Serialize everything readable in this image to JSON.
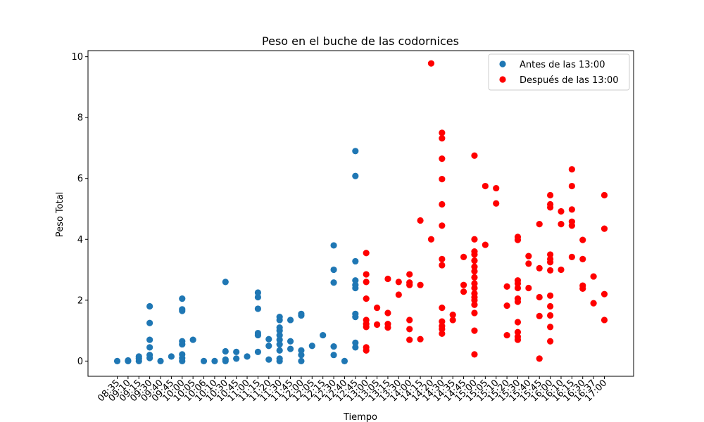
{
  "chart_data": {
    "type": "scatter",
    "title": "Peso en el buche de las codornices",
    "xlabel": "Tiempo",
    "ylabel": "Peso Total",
    "ylim": [
      -0.5,
      10.2
    ],
    "yticks": [
      0,
      2,
      4,
      6,
      8,
      10
    ],
    "grid": false,
    "legend_position": "top-right",
    "categories": [
      "08:35",
      "09:10",
      "09:15",
      "09:30",
      "09:40",
      "09:45",
      "10:00",
      "10:05",
      "10:06",
      "10:10",
      "10:30",
      "10:45",
      "11:00",
      "11:15",
      "11:20",
      "11:30",
      "11:45",
      "12:00",
      "12:05",
      "12:15",
      "12:30",
      "12:40",
      "12:45",
      "13:00",
      "13:05",
      "13:15",
      "13:30",
      "14:00",
      "14:15",
      "14:20",
      "14:30",
      "14:35",
      "14:45",
      "15:00",
      "15:05",
      "15:10",
      "15:20",
      "15:30",
      "15:40",
      "15:45",
      "16:00",
      "16:10",
      "16:15",
      "16:30",
      "16:37",
      "17:00"
    ],
    "series": [
      {
        "name": "Antes de las 13:00",
        "color": "#1f77b4",
        "points": [
          {
            "x": "08:35",
            "y": 0.0
          },
          {
            "x": "09:10",
            "y": 0.0
          },
          {
            "x": "09:10",
            "y": 0.02
          },
          {
            "x": "09:15",
            "y": 0.0
          },
          {
            "x": "09:15",
            "y": 0.08
          },
          {
            "x": "09:15",
            "y": 0.15
          },
          {
            "x": "09:30",
            "y": 0.1
          },
          {
            "x": "09:30",
            "y": 0.2
          },
          {
            "x": "09:30",
            "y": 0.45
          },
          {
            "x": "09:30",
            "y": 0.7
          },
          {
            "x": "09:30",
            "y": 1.25
          },
          {
            "x": "09:30",
            "y": 1.8
          },
          {
            "x": "09:40",
            "y": 0.0
          },
          {
            "x": "09:45",
            "y": 0.15
          },
          {
            "x": "10:00",
            "y": 0.0
          },
          {
            "x": "10:00",
            "y": 0.1
          },
          {
            "x": "10:00",
            "y": 0.22
          },
          {
            "x": "10:00",
            "y": 0.55
          },
          {
            "x": "10:00",
            "y": 0.65
          },
          {
            "x": "10:00",
            "y": 1.65
          },
          {
            "x": "10:00",
            "y": 1.7
          },
          {
            "x": "10:00",
            "y": 2.05
          },
          {
            "x": "10:05",
            "y": 0.7
          },
          {
            "x": "10:06",
            "y": 0.0
          },
          {
            "x": "10:10",
            "y": 0.0
          },
          {
            "x": "10:30",
            "y": 0.0
          },
          {
            "x": "10:30",
            "y": 0.05
          },
          {
            "x": "10:30",
            "y": 0.32
          },
          {
            "x": "10:30",
            "y": 2.6
          },
          {
            "x": "10:45",
            "y": 0.08
          },
          {
            "x": "10:45",
            "y": 0.3
          },
          {
            "x": "11:00",
            "y": 0.15
          },
          {
            "x": "11:15",
            "y": 0.3
          },
          {
            "x": "11:15",
            "y": 0.85
          },
          {
            "x": "11:15",
            "y": 0.92
          },
          {
            "x": "11:15",
            "y": 1.72
          },
          {
            "x": "11:15",
            "y": 2.1
          },
          {
            "x": "11:15",
            "y": 2.25
          },
          {
            "x": "11:20",
            "y": 0.05
          },
          {
            "x": "11:20",
            "y": 0.5
          },
          {
            "x": "11:20",
            "y": 0.72
          },
          {
            "x": "11:30",
            "y": 0.0
          },
          {
            "x": "11:30",
            "y": 0.08
          },
          {
            "x": "11:30",
            "y": 0.35
          },
          {
            "x": "11:30",
            "y": 0.55
          },
          {
            "x": "11:30",
            "y": 0.7
          },
          {
            "x": "11:30",
            "y": 0.85
          },
          {
            "x": "11:30",
            "y": 1.0
          },
          {
            "x": "11:30",
            "y": 1.1
          },
          {
            "x": "11:30",
            "y": 1.35
          },
          {
            "x": "11:30",
            "y": 1.45
          },
          {
            "x": "11:45",
            "y": 0.4
          },
          {
            "x": "11:45",
            "y": 0.65
          },
          {
            "x": "11:45",
            "y": 1.35
          },
          {
            "x": "12:00",
            "y": 0.0
          },
          {
            "x": "12:00",
            "y": 0.2
          },
          {
            "x": "12:00",
            "y": 0.35
          },
          {
            "x": "12:00",
            "y": 1.5
          },
          {
            "x": "12:00",
            "y": 1.55
          },
          {
            "x": "12:05",
            "y": 0.5
          },
          {
            "x": "12:15",
            "y": 0.85
          },
          {
            "x": "12:30",
            "y": 0.2
          },
          {
            "x": "12:30",
            "y": 0.48
          },
          {
            "x": "12:30",
            "y": 2.58
          },
          {
            "x": "12:30",
            "y": 3.0
          },
          {
            "x": "12:30",
            "y": 3.8
          },
          {
            "x": "12:40",
            "y": 0.0
          },
          {
            "x": "12:45",
            "y": 0.45
          },
          {
            "x": "12:45",
            "y": 0.6
          },
          {
            "x": "12:45",
            "y": 1.45
          },
          {
            "x": "12:45",
            "y": 1.55
          },
          {
            "x": "12:45",
            "y": 2.4
          },
          {
            "x": "12:45",
            "y": 2.5
          },
          {
            "x": "12:45",
            "y": 2.65
          },
          {
            "x": "12:45",
            "y": 3.28
          },
          {
            "x": "12:45",
            "y": 6.08
          },
          {
            "x": "12:45",
            "y": 6.9
          }
        ]
      },
      {
        "name": "Después de las 13:00",
        "color": "#ff0000",
        "points": [
          {
            "x": "13:00",
            "y": 0.35
          },
          {
            "x": "13:00",
            "y": 0.45
          },
          {
            "x": "13:00",
            "y": 1.12
          },
          {
            "x": "13:00",
            "y": 1.22
          },
          {
            "x": "13:00",
            "y": 1.35
          },
          {
            "x": "13:00",
            "y": 2.05
          },
          {
            "x": "13:00",
            "y": 2.6
          },
          {
            "x": "13:00",
            "y": 2.85
          },
          {
            "x": "13:00",
            "y": 3.55
          },
          {
            "x": "13:05",
            "y": 1.2
          },
          {
            "x": "13:05",
            "y": 1.75
          },
          {
            "x": "13:15",
            "y": 1.1
          },
          {
            "x": "13:15",
            "y": 1.22
          },
          {
            "x": "13:15",
            "y": 1.58
          },
          {
            "x": "13:15",
            "y": 2.7
          },
          {
            "x": "13:30",
            "y": 2.18
          },
          {
            "x": "13:30",
            "y": 2.6
          },
          {
            "x": "14:00",
            "y": 0.7
          },
          {
            "x": "14:00",
            "y": 1.05
          },
          {
            "x": "14:00",
            "y": 1.35
          },
          {
            "x": "14:00",
            "y": 2.5
          },
          {
            "x": "14:00",
            "y": 2.58
          },
          {
            "x": "14:00",
            "y": 2.85
          },
          {
            "x": "14:15",
            "y": 0.72
          },
          {
            "x": "14:15",
            "y": 2.5
          },
          {
            "x": "14:15",
            "y": 4.62
          },
          {
            "x": "14:20",
            "y": 4.0
          },
          {
            "x": "14:20",
            "y": 9.78
          },
          {
            "x": "14:30",
            "y": 0.9
          },
          {
            "x": "14:30",
            "y": 1.05
          },
          {
            "x": "14:30",
            "y": 1.15
          },
          {
            "x": "14:30",
            "y": 1.3
          },
          {
            "x": "14:30",
            "y": 1.75
          },
          {
            "x": "14:30",
            "y": 3.15
          },
          {
            "x": "14:30",
            "y": 3.35
          },
          {
            "x": "14:30",
            "y": 4.45
          },
          {
            "x": "14:30",
            "y": 5.15
          },
          {
            "x": "14:30",
            "y": 5.98
          },
          {
            "x": "14:30",
            "y": 6.65
          },
          {
            "x": "14:30",
            "y": 7.32
          },
          {
            "x": "14:30",
            "y": 7.5
          },
          {
            "x": "14:35",
            "y": 1.35
          },
          {
            "x": "14:35",
            "y": 1.52
          },
          {
            "x": "14:45",
            "y": 2.28
          },
          {
            "x": "14:45",
            "y": 2.5
          },
          {
            "x": "14:45",
            "y": 3.42
          },
          {
            "x": "15:00",
            "y": 0.22
          },
          {
            "x": "15:00",
            "y": 1.0
          },
          {
            "x": "15:00",
            "y": 1.58
          },
          {
            "x": "15:00",
            "y": 1.85
          },
          {
            "x": "15:00",
            "y": 2.0
          },
          {
            "x": "15:00",
            "y": 2.1
          },
          {
            "x": "15:00",
            "y": 2.22
          },
          {
            "x": "15:00",
            "y": 2.4
          },
          {
            "x": "15:00",
            "y": 2.55
          },
          {
            "x": "15:00",
            "y": 2.75
          },
          {
            "x": "15:00",
            "y": 2.95
          },
          {
            "x": "15:00",
            "y": 3.1
          },
          {
            "x": "15:00",
            "y": 3.3
          },
          {
            "x": "15:00",
            "y": 3.5
          },
          {
            "x": "15:00",
            "y": 3.6
          },
          {
            "x": "15:00",
            "y": 4.0
          },
          {
            "x": "15:00",
            "y": 6.75
          },
          {
            "x": "15:05",
            "y": 3.82
          },
          {
            "x": "15:05",
            "y": 5.75
          },
          {
            "x": "15:10",
            "y": 5.18
          },
          {
            "x": "15:10",
            "y": 5.68
          },
          {
            "x": "15:20",
            "y": 0.85
          },
          {
            "x": "15:20",
            "y": 1.82
          },
          {
            "x": "15:20",
            "y": 2.45
          },
          {
            "x": "15:30",
            "y": 0.7
          },
          {
            "x": "15:30",
            "y": 0.8
          },
          {
            "x": "15:30",
            "y": 0.95
          },
          {
            "x": "15:30",
            "y": 1.28
          },
          {
            "x": "15:30",
            "y": 1.95
          },
          {
            "x": "15:30",
            "y": 2.05
          },
          {
            "x": "15:30",
            "y": 2.4
          },
          {
            "x": "15:30",
            "y": 2.55
          },
          {
            "x": "15:30",
            "y": 2.65
          },
          {
            "x": "15:30",
            "y": 3.98
          },
          {
            "x": "15:30",
            "y": 4.08
          },
          {
            "x": "15:40",
            "y": 2.4
          },
          {
            "x": "15:40",
            "y": 3.2
          },
          {
            "x": "15:40",
            "y": 3.45
          },
          {
            "x": "15:45",
            "y": 0.08
          },
          {
            "x": "15:45",
            "y": 1.48
          },
          {
            "x": "15:45",
            "y": 2.1
          },
          {
            "x": "15:45",
            "y": 3.05
          },
          {
            "x": "15:45",
            "y": 4.5
          },
          {
            "x": "16:00",
            "y": 0.65
          },
          {
            "x": "16:00",
            "y": 1.12
          },
          {
            "x": "16:00",
            "y": 1.5
          },
          {
            "x": "16:00",
            "y": 1.8
          },
          {
            "x": "16:00",
            "y": 2.15
          },
          {
            "x": "16:00",
            "y": 2.98
          },
          {
            "x": "16:00",
            "y": 3.25
          },
          {
            "x": "16:00",
            "y": 3.35
          },
          {
            "x": "16:00",
            "y": 3.5
          },
          {
            "x": "16:00",
            "y": 5.05
          },
          {
            "x": "16:00",
            "y": 5.15
          },
          {
            "x": "16:00",
            "y": 5.45
          },
          {
            "x": "16:10",
            "y": 3.0
          },
          {
            "x": "16:10",
            "y": 4.5
          },
          {
            "x": "16:10",
            "y": 4.92
          },
          {
            "x": "16:15",
            "y": 3.42
          },
          {
            "x": "16:15",
            "y": 4.45
          },
          {
            "x": "16:15",
            "y": 4.58
          },
          {
            "x": "16:15",
            "y": 4.98
          },
          {
            "x": "16:15",
            "y": 5.75
          },
          {
            "x": "16:15",
            "y": 6.3
          },
          {
            "x": "16:30",
            "y": 2.38
          },
          {
            "x": "16:30",
            "y": 2.48
          },
          {
            "x": "16:30",
            "y": 3.35
          },
          {
            "x": "16:30",
            "y": 3.98
          },
          {
            "x": "16:37",
            "y": 1.9
          },
          {
            "x": "16:37",
            "y": 2.78
          },
          {
            "x": "17:00",
            "y": 1.35
          },
          {
            "x": "17:00",
            "y": 2.2
          },
          {
            "x": "17:00",
            "y": 4.35
          },
          {
            "x": "17:00",
            "y": 5.45
          }
        ]
      }
    ]
  }
}
